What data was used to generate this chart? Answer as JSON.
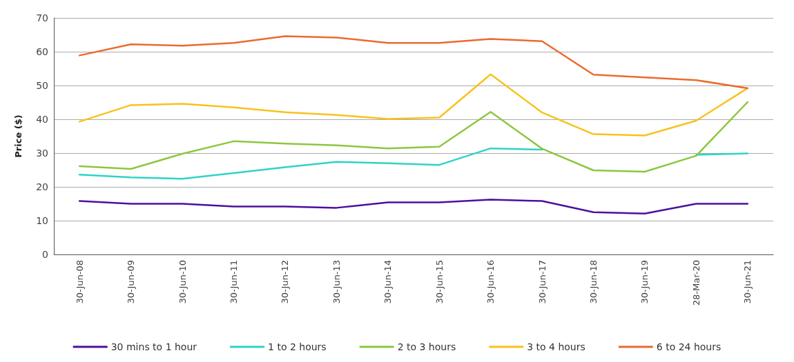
{
  "chart_data": {
    "type": "line",
    "ylabel": "Price ($)",
    "categories": [
      "30-Jun-08",
      "30-Jun-09",
      "30-Jun-10",
      "30-Jun-11",
      "30-Jun-12",
      "30-Jun-13",
      "30-Jun-14",
      "30-Jun-15",
      "30-Jun-16",
      "30-Jun-17",
      "30-Jun-18",
      "30-Jun-19",
      "28-Mar-20",
      "30-Jun-21"
    ],
    "series": [
      {
        "name": "30 mins to 1 hour",
        "color": "#4b0fa0",
        "values": [
          15.8,
          15,
          15,
          14.2,
          14.2,
          13.8,
          15.4,
          15.4,
          16.2,
          15.8,
          12.5,
          12.1,
          15,
          15
        ]
      },
      {
        "name": "1 to 2 hours",
        "color": "#2ed3c6",
        "values": [
          23.6,
          22.8,
          22.4,
          24.1,
          25.8,
          27.4,
          27,
          26.5,
          31.4,
          31,
          null,
          null,
          29.5,
          29.9
        ]
      },
      {
        "name": "2 to 3 hours",
        "color": "#8dc63f",
        "values": [
          26.1,
          25.3,
          29.8,
          33.5,
          32.8,
          32.3,
          31.4,
          31.9,
          42.2,
          31.3,
          24.9,
          24.5,
          29.2,
          45.1
        ]
      },
      {
        "name": "3 to 4 hours",
        "color": "#f8c21c",
        "values": [
          39.3,
          44.2,
          44.6,
          43.5,
          42.1,
          41.3,
          40.1,
          40.5,
          53.3,
          42,
          35.6,
          35.2,
          39.6,
          49.2
        ]
      },
      {
        "name": "6 to 24 hours",
        "color": "#ec6a2c",
        "values": [
          58.9,
          62.2,
          61.8,
          62.6,
          64.6,
          64.2,
          62.6,
          62.6,
          63.8,
          63.1,
          53.2,
          52.4,
          51.6,
          49.2
        ]
      }
    ],
    "ylim": [
      0,
      70
    ],
    "yticks": [
      0,
      10,
      20,
      30,
      40,
      50,
      60,
      70
    ],
    "grid": "y",
    "legend": "bottom",
    "marker": "none",
    "line_style": "solid"
  }
}
